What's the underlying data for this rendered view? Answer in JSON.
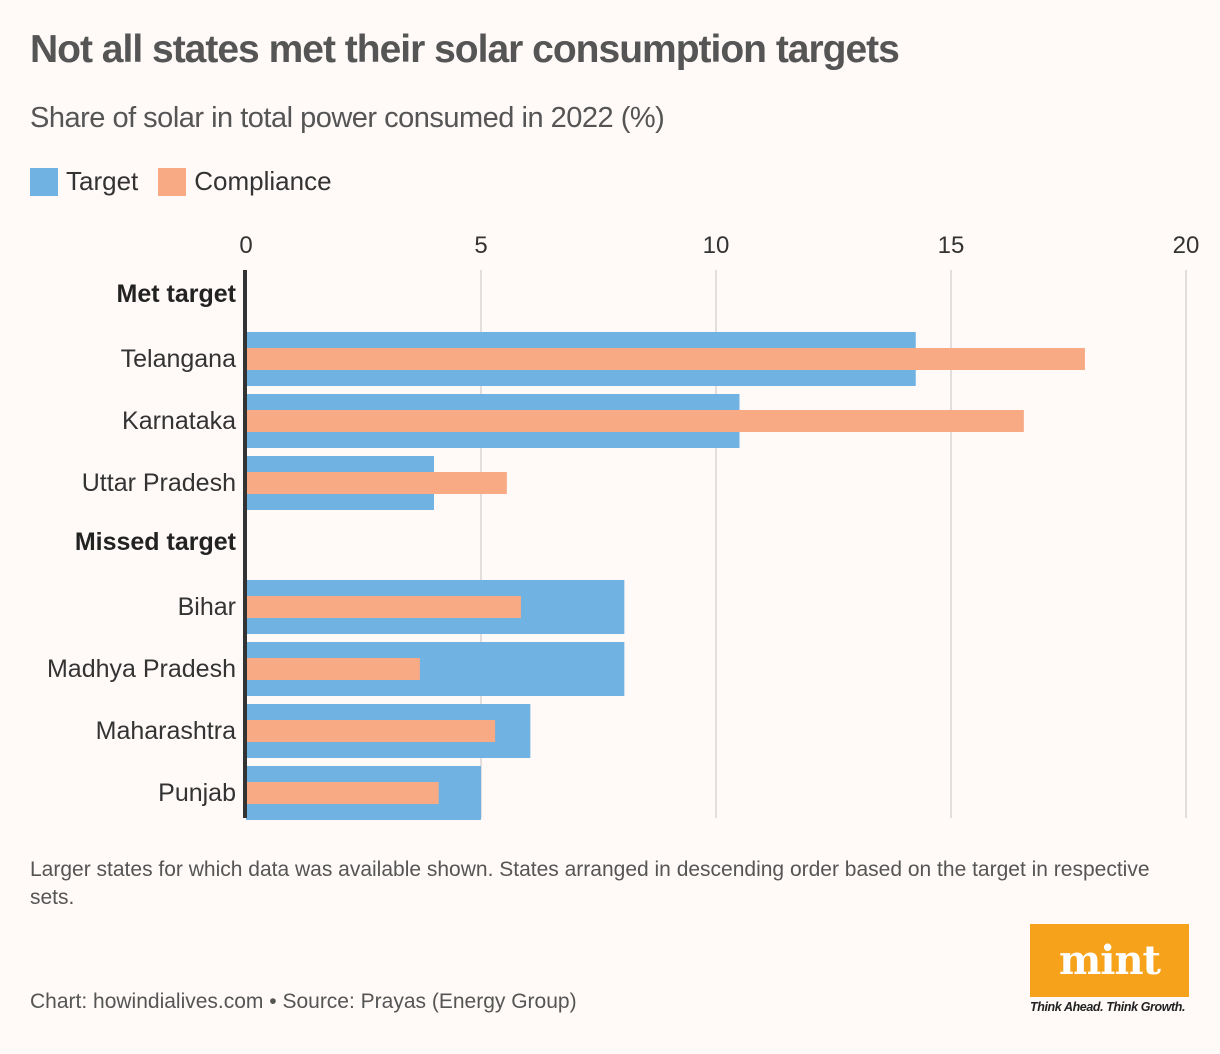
{
  "chart_data": {
    "type": "bar",
    "orientation": "horizontal",
    "title": "Not all states met their solar consumption targets",
    "subtitle": "Share of solar in total power consumed in 2022 (%)",
    "xlabel": "",
    "ylabel": "",
    "xlim": [
      0,
      20
    ],
    "xticks": [
      0,
      5,
      10,
      15,
      20
    ],
    "grid": true,
    "legend_position": "top-left",
    "series": [
      {
        "name": "Target",
        "color": "#70b2e2"
      },
      {
        "name": "Compliance",
        "color": "#f8aa84"
      }
    ],
    "groups": [
      {
        "label": "Met target",
        "rows": [
          {
            "category": "Telangana",
            "target": 14.25,
            "compliance": 17.85
          },
          {
            "category": "Karnataka",
            "target": 10.5,
            "compliance": 16.55
          },
          {
            "category": "Uttar Pradesh",
            "target": 4.0,
            "compliance": 5.55
          }
        ]
      },
      {
        "label": "Missed target",
        "rows": [
          {
            "category": "Bihar",
            "target": 8.05,
            "compliance": 5.85
          },
          {
            "category": "Madhya Pradesh",
            "target": 8.05,
            "compliance": 3.7
          },
          {
            "category": "Maharashtra",
            "target": 6.05,
            "compliance": 5.3
          },
          {
            "category": "Punjab",
            "target": 5.0,
            "compliance": 4.1
          }
        ]
      }
    ]
  },
  "header": {
    "title": "Not all states met their solar consumption targets",
    "subtitle": "Share of solar in total power consumed in 2022 (%)"
  },
  "legend": {
    "target": "Target",
    "compliance": "Compliance"
  },
  "footer": {
    "note": "Larger states for which data was available shown. States arranged in descending order based on the target in respective sets.",
    "source": "Chart: howindialives.com • Source: Prayas (Energy Group)",
    "logo_text": "mint",
    "tagline": "Think Ahead. Think Growth."
  },
  "colors": {
    "target": "#70b2e2",
    "compliance": "#f8aa84",
    "logo": "#f7a21b"
  }
}
